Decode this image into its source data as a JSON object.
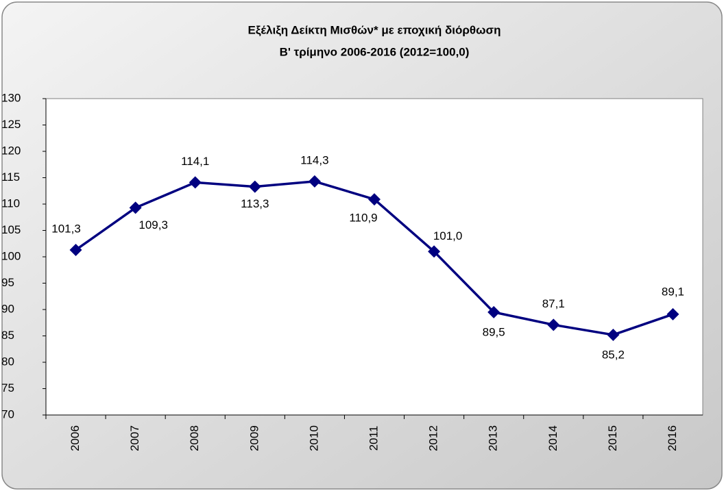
{
  "chart_data": {
    "type": "line",
    "title": "Εξέλιξη Δείκτη Μισθών* με εποχική διόρθωση",
    "subtitle": "Β' τρίμηνο 2006-2016 (2012=100,0)",
    "categories": [
      "2006",
      "2007",
      "2008",
      "2009",
      "2010",
      "2011",
      "2012",
      "2013",
      "2014",
      "2015",
      "2016"
    ],
    "series": [
      {
        "color": "#000080",
        "values": [
          101.3,
          109.3,
          114.1,
          113.3,
          114.3,
          110.9,
          101.0,
          89.5,
          87.1,
          85.2,
          89.1
        ],
        "value_labels": [
          "101,3",
          "109,3",
          "114,1",
          "113,3",
          "114,3",
          "110,9",
          "101,0",
          "89,5",
          "87,1",
          "85,2",
          "89,1"
        ]
      }
    ],
    "ylim": [
      70,
      130
    ],
    "yticks": [
      70,
      75,
      80,
      85,
      90,
      95,
      100,
      105,
      110,
      115,
      120,
      125,
      130
    ],
    "grid": false
  }
}
